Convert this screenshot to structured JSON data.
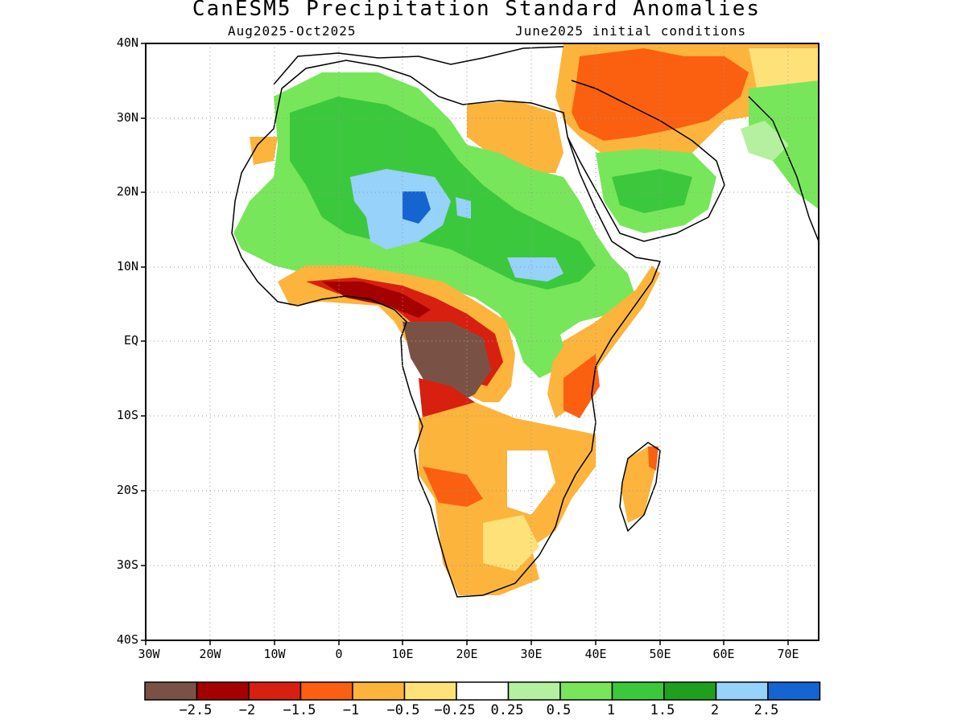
{
  "header": {
    "title": "CanESM5 Precipitation Standard Anomalies",
    "subtitle_left": "Aug2025-Oct2025",
    "subtitle_right": "June2025 initial conditions"
  },
  "axes": {
    "lat_labels": [
      "40N",
      "30N",
      "20N",
      "10N",
      "EQ",
      "10S",
      "20S",
      "30S",
      "40S"
    ],
    "lon_labels": [
      "30W",
      "20W",
      "10W",
      "0",
      "10E",
      "20E",
      "30E",
      "40E",
      "50E",
      "60E",
      "70E"
    ]
  },
  "colorbar": {
    "colors": [
      "#7a5245",
      "#a50000",
      "#d82010",
      "#fa6010",
      "#fcb43c",
      "#fee178",
      "#ffffff",
      "#b4f0a0",
      "#78e65a",
      "#3cc83c",
      "#1ea01e",
      "#96d2fa",
      "#1464d2"
    ],
    "labels": [
      "−2.5",
      "−2",
      "−1.5",
      "−1",
      "−0.5",
      "−0.25",
      "0.25",
      "0.5",
      "1",
      "1.5",
      "2",
      "2.5"
    ]
  },
  "chart_data": {
    "type": "heatmap",
    "title": "CanESM5 Precipitation Standard Anomalies",
    "period": "Aug2025-Oct2025",
    "initial_conditions": "June2025 initial conditions",
    "lon_range": [
      "30W",
      "75E"
    ],
    "lat_range": [
      "40S",
      "40N"
    ],
    "color_levels": [
      -2.5,
      -2,
      -1.5,
      -1,
      -0.5,
      -0.25,
      0.25,
      0.5,
      1,
      1.5,
      2,
      2.5
    ]
  }
}
